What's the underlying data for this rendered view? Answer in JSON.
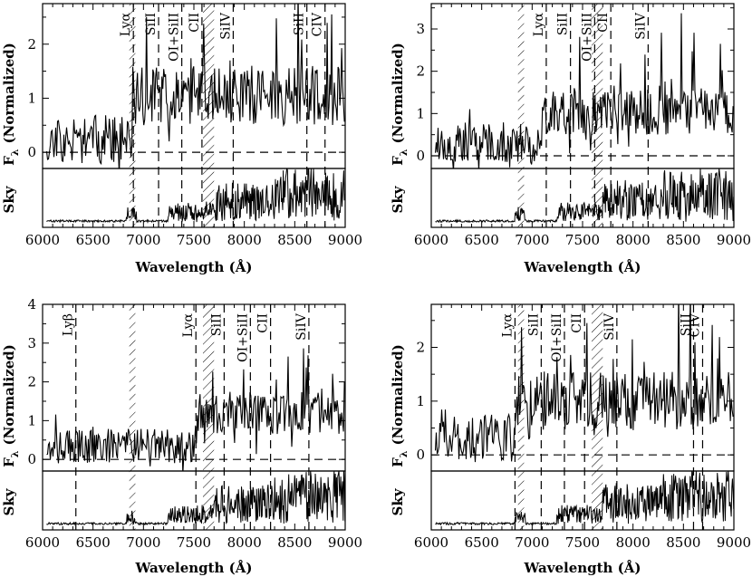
{
  "figure": {
    "caption_hidden": false
  },
  "chart_data": [
    {
      "type": "line",
      "panel": "top-left",
      "xlabel": "Wavelength (Å)",
      "ylabel": "F_λ (Normalized)",
      "ylabel_main": "F",
      "ylabel_sub": "λ",
      "ylabel_rest": "(Normalized)",
      "sky_label": "Sky",
      "xlim": [
        6000,
        9000
      ],
      "ylim": [
        -0.3,
        2.75
      ],
      "xticks": [
        "6000",
        "6500",
        "7000",
        "7500",
        "8000",
        "8500",
        "9000"
      ],
      "xtick_values": [
        6000,
        6500,
        7000,
        7500,
        8000,
        8500,
        9000
      ],
      "yticks": [
        "0",
        "1",
        "2"
      ],
      "ytick_values": [
        0,
        1,
        2
      ],
      "break_wavelength": 6880,
      "level_blue": 0.25,
      "level_red": 1.05,
      "seed": 11,
      "lines": [
        {
          "label": "Lyα",
          "x": 6900
        },
        {
          "label": "SiII",
          "x": 7150
        },
        {
          "label": "OI+SiII",
          "x": 7380
        },
        {
          "label": "CII",
          "x": 7580
        },
        {
          "label": "SiIV",
          "x": 7890
        },
        {
          "label": "SiII",
          "x": 8620
        },
        {
          "label": "CIV",
          "x": 8800
        }
      ],
      "hatch_bands": [
        [
          6860,
          6920
        ],
        [
          7590,
          7700
        ]
      ]
    },
    {
      "type": "line",
      "panel": "top-right",
      "xlabel": "Wavelength (Å)",
      "ylabel": "F_λ (Normalized)",
      "ylabel_main": "F",
      "ylabel_sub": "λ",
      "ylabel_rest": "(Normalized)",
      "sky_label": "Sky",
      "xlim": [
        6000,
        9000
      ],
      "ylim": [
        -0.3,
        3.6
      ],
      "xticks": [
        "6000",
        "6500",
        "7000",
        "7500",
        "8000",
        "8500",
        "9000"
      ],
      "xtick_values": [
        6000,
        6500,
        7000,
        7500,
        8000,
        8500,
        9000
      ],
      "yticks": [
        "0",
        "1",
        "2",
        "3"
      ],
      "ytick_values": [
        0,
        1,
        2,
        3
      ],
      "break_wavelength": 7100,
      "level_blue": 0.3,
      "level_red": 1.05,
      "seed": 23,
      "lines": [
        {
          "label": "Lyα",
          "x": 7140
        },
        {
          "label": "SiII",
          "x": 7380
        },
        {
          "label": "OI+SiII",
          "x": 7620
        },
        {
          "label": "CII",
          "x": 7780
        },
        {
          "label": "SiIV",
          "x": 8150
        }
      ],
      "hatch_bands": [
        [
          6860,
          6920
        ],
        [
          7590,
          7700
        ]
      ]
    },
    {
      "type": "line",
      "panel": "bottom-left",
      "xlabel": "Wavelength (Å)",
      "ylabel": "F_λ (Normalized)",
      "ylabel_main": "F",
      "ylabel_sub": "λ",
      "ylabel_rest": "(Normalized)",
      "sky_label": "Sky",
      "xlim": [
        6000,
        9000
      ],
      "ylim": [
        -0.3,
        4.0
      ],
      "xticks": [
        "6000",
        "6500",
        "7000",
        "7500",
        "8000",
        "8500",
        "9000"
      ],
      "xtick_values": [
        6000,
        6500,
        7000,
        7500,
        8000,
        8500,
        9000
      ],
      "yticks": [
        "0",
        "1",
        "2",
        "3",
        "4"
      ],
      "ytick_values": [
        0,
        1,
        2,
        3,
        4
      ],
      "break_wavelength": 7510,
      "level_blue": 0.35,
      "level_red": 1.2,
      "seed": 37,
      "lines": [
        {
          "label": "Lyβ",
          "x": 6330
        },
        {
          "label": "Lyα",
          "x": 7520
        },
        {
          "label": "SiII",
          "x": 7800
        },
        {
          "label": "OI+SiII",
          "x": 8060
        },
        {
          "label": "CII",
          "x": 8260
        },
        {
          "label": "SiIV",
          "x": 8640
        }
      ],
      "hatch_bands": [
        [
          6860,
          6920
        ],
        [
          7590,
          7700
        ]
      ]
    },
    {
      "type": "line",
      "panel": "bottom-right",
      "xlabel": "Wavelength (Å)",
      "ylabel": "F_λ (Normalized)",
      "ylabel_main": "F",
      "ylabel_sub": "λ",
      "ylabel_rest": "(Normalized)",
      "sky_label": "Sky",
      "xlim": [
        6000,
        9000
      ],
      "ylim": [
        -0.3,
        2.8
      ],
      "xticks": [
        "6000",
        "6500",
        "7000",
        "7500",
        "8000",
        "8500",
        "9000"
      ],
      "xtick_values": [
        6000,
        6500,
        7000,
        7500,
        8000,
        8500,
        9000
      ],
      "yticks": [
        "0",
        "1",
        "2"
      ],
      "ytick_values": [
        0,
        1,
        2
      ],
      "break_wavelength": 6840,
      "level_blue": 0.3,
      "level_red": 1.0,
      "seed": 53,
      "lines": [
        {
          "label": "Lyα",
          "x": 6830
        },
        {
          "label": "SiII",
          "x": 7090
        },
        {
          "label": "OI+SiII",
          "x": 7320
        },
        {
          "label": "CII",
          "x": 7520
        },
        {
          "label": "SiIV",
          "x": 7840
        },
        {
          "label": "SiII",
          "x": 8600
        },
        {
          "label": "CIV",
          "x": 8690
        }
      ],
      "hatch_bands": [
        [
          6860,
          6920
        ],
        [
          7590,
          7700
        ]
      ]
    }
  ]
}
